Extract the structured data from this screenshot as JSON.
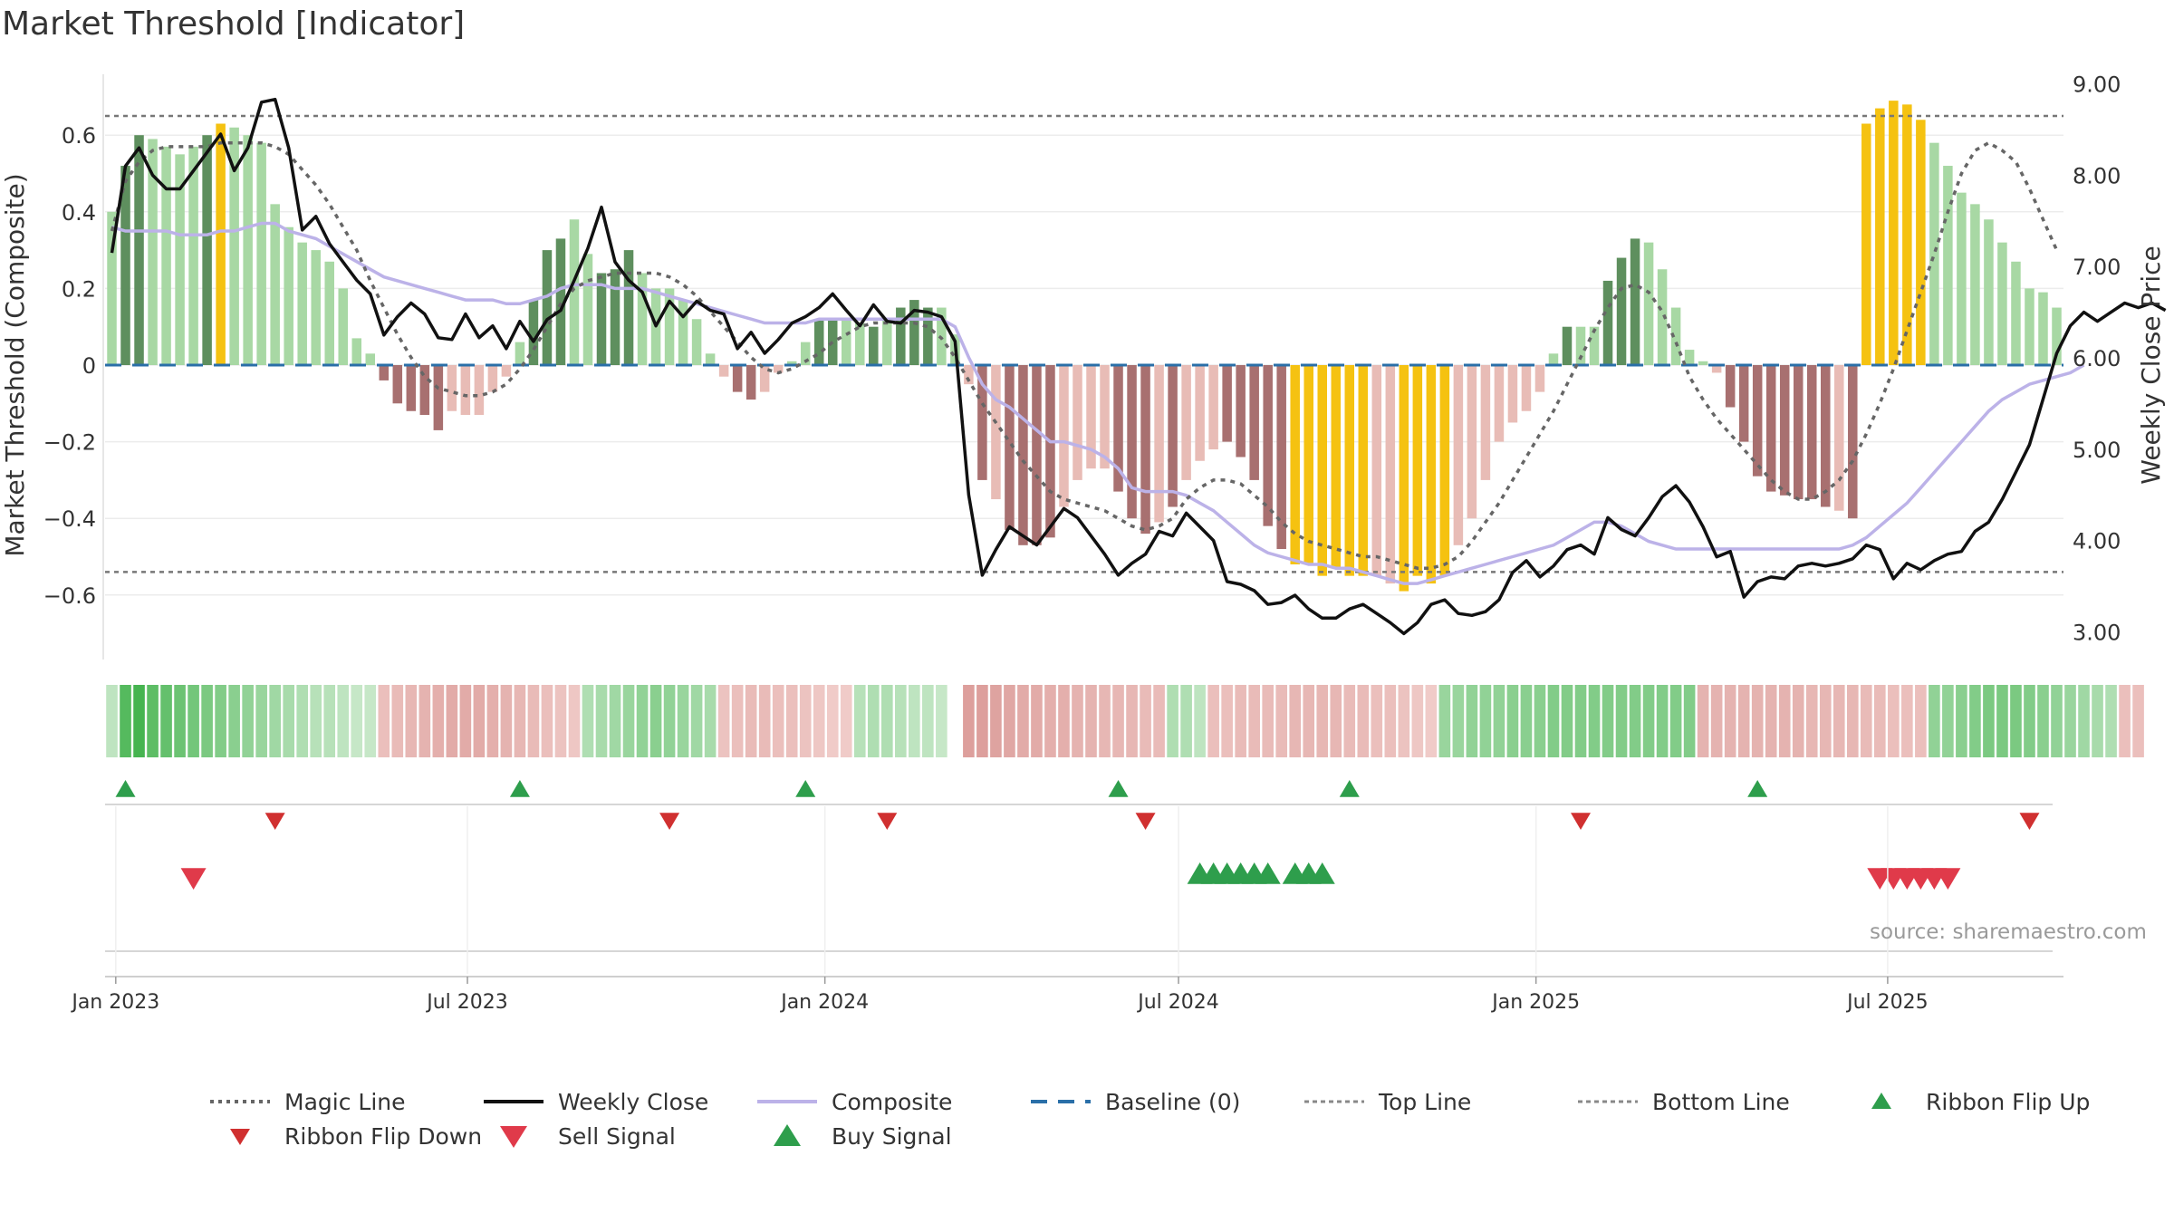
{
  "title": "Market Threshold [Indicator]",
  "source": "source: sharemaestro.com",
  "colors": {
    "magic_line": "#666666",
    "weekly_close": "#111111",
    "composite": "#bcb2e8",
    "baseline": "#2a6fa8",
    "threshold_lines": "#777777",
    "bar_dark_green": "#5e8f5e",
    "bar_light_green": "#a8d8a4",
    "bar_dark_red": "#a87070",
    "bar_light_red": "#e8bcb6",
    "bar_yellow": "#f5c211",
    "buy_signal": "#2e9e4c",
    "sell_signal": "#e03a4a",
    "ribbon_flip_up": "#2e9e4c",
    "ribbon_flip_down": "#d03030"
  },
  "legend": [
    {
      "label": "Magic Line",
      "symbol": "dotted-line"
    },
    {
      "label": "Weekly Close",
      "symbol": "solid-line"
    },
    {
      "label": "Composite",
      "symbol": "solid-line-light"
    },
    {
      "label": "Baseline (0)",
      "symbol": "dashed-line"
    },
    {
      "label": "Top Line",
      "symbol": "dotted-line-light"
    },
    {
      "label": "Bottom Line",
      "symbol": "dotted-line-light"
    },
    {
      "label": "Ribbon Flip Up",
      "symbol": "triangle-up"
    },
    {
      "label": "Ribbon Flip Down",
      "symbol": "triangle-down"
    },
    {
      "label": "Sell Signal",
      "symbol": "triangle-down"
    },
    {
      "label": "Buy Signal",
      "symbol": "triangle-up"
    }
  ],
  "chart_data": {
    "type": "bar",
    "title": "Market Threshold [Indicator]",
    "ylabel": "Market Threshold (Composite)",
    "y2label": "Weekly Close Price",
    "ylim": [
      -0.76,
      0.76
    ],
    "y2lim": [
      2.75,
      9.2
    ],
    "yticks": [
      "0.6",
      "0.4",
      "0.2",
      "0",
      "−0.2",
      "−0.4",
      "−0.6"
    ],
    "y2ticks": [
      "9.00",
      "8.00",
      "7.00",
      "6.00",
      "5.00",
      "4.00",
      "3.00"
    ],
    "xticks": [
      "Jan 2023",
      "Jul 2023",
      "Jan 2024",
      "Jul 2024",
      "Jan 2025",
      "Jul 2025"
    ],
    "x_start": "2022-12-30",
    "weeks": 144,
    "top_line": 0.65,
    "bottom_line": -0.54,
    "baseline": 0,
    "grid": true,
    "legend_position": "bottom",
    "composite_bars": [
      {
        "from": 0,
        "to": 1,
        "values": [
          0.4,
          0.52
        ],
        "colors": [
          "lg",
          "dg"
        ]
      },
      {
        "from": 2,
        "to": 7,
        "values": [
          0.6,
          0.59,
          0.57,
          0.55,
          0.57,
          0.6
        ],
        "colors": [
          "dg",
          "lg",
          "lg",
          "lg",
          "lg",
          "dg"
        ]
      },
      {
        "from": 8,
        "to": 8,
        "values": [
          0.63
        ],
        "colors": [
          "y"
        ]
      },
      {
        "from": 9,
        "to": 17,
        "values": [
          0.62,
          0.6,
          0.58,
          0.42,
          0.36,
          0.32,
          0.3,
          0.27,
          0.2
        ],
        "colors": [
          "lg",
          "lg",
          "lg",
          "lg",
          "lg",
          "lg",
          "lg",
          "lg",
          "lg"
        ]
      },
      {
        "from": 18,
        "to": 19,
        "values": [
          0.07,
          0.03
        ],
        "colors": [
          "lg",
          "lg"
        ]
      },
      {
        "from": 20,
        "to": 28,
        "values": [
          -0.04,
          -0.1,
          -0.12,
          -0.13,
          -0.17,
          -0.12,
          -0.13,
          -0.13,
          -0.07
        ],
        "colors": [
          "dr",
          "dr",
          "dr",
          "dr",
          "dr",
          "lr",
          "lr",
          "lr",
          "lr"
        ]
      },
      {
        "from": 29,
        "to": 38,
        "values": [
          -0.03,
          0.06,
          0.17,
          0.3,
          0.33,
          0.38,
          0.29,
          0.24,
          0.25,
          0.3
        ],
        "colors": [
          "lr",
          "lg",
          "dg",
          "dg",
          "dg",
          "lg",
          "lg",
          "dg",
          "dg",
          "dg"
        ]
      },
      {
        "from": 39,
        "to": 43,
        "values": [
          0.24,
          0.2,
          0.2,
          0.17,
          0.12
        ],
        "colors": [
          "lg",
          "lg",
          "lg",
          "lg",
          "lg"
        ]
      },
      {
        "from": 44,
        "to": 50,
        "values": [
          0.03,
          -0.03,
          -0.07,
          -0.09,
          -0.07,
          -0.02,
          0.01
        ],
        "colors": [
          "lg",
          "lr",
          "dr",
          "dr",
          "lr",
          "lr",
          "lg"
        ]
      },
      {
        "from": 51,
        "to": 56,
        "values": [
          0.06,
          0.12,
          0.12,
          0.12,
          0.11,
          0.1
        ],
        "colors": [
          "lg",
          "dg",
          "dg",
          "lg",
          "lg",
          "dg"
        ]
      },
      {
        "from": 57,
        "to": 62,
        "values": [
          0.12,
          0.15,
          0.17,
          0.15,
          0.15,
          0.08
        ],
        "colors": [
          "lg",
          "dg",
          "dg",
          "dg",
          "lg",
          "lg"
        ]
      },
      {
        "from": 63,
        "to": 68,
        "values": [
          -0.05,
          -0.3,
          -0.35,
          -0.43,
          -0.47,
          -0.47
        ],
        "colors": [
          "lr",
          "dr",
          "lr",
          "dr",
          "dr",
          "dr"
        ]
      },
      {
        "from": 69,
        "to": 75,
        "values": [
          -0.45,
          -0.37,
          -0.3,
          -0.27,
          -0.27,
          -0.33,
          -0.4
        ],
        "colors": [
          "dr",
          "lr",
          "lr",
          "lr",
          "lr",
          "dr",
          "dr"
        ]
      },
      {
        "from": 76,
        "to": 84,
        "values": [
          -0.44,
          -0.41,
          -0.37,
          -0.3,
          -0.25,
          -0.22,
          -0.2,
          -0.24,
          -0.3
        ],
        "colors": [
          "dr",
          "lr",
          "dr",
          "lr",
          "lr",
          "lr",
          "dr",
          "dr",
          "dr"
        ]
      },
      {
        "from": 85,
        "to": 89,
        "values": [
          -0.42,
          -0.48,
          -0.52,
          -0.52,
          -0.55
        ],
        "colors": [
          "dr",
          "dr",
          "y",
          "y",
          "y"
        ]
      },
      {
        "from": 90,
        "to": 96,
        "values": [
          -0.53,
          -0.55,
          -0.55,
          -0.55,
          -0.57,
          -0.59,
          -0.55
        ],
        "colors": [
          "y",
          "y",
          "y",
          "lr",
          "lr",
          "y",
          "y"
        ]
      },
      {
        "from": 97,
        "to": 98,
        "values": [
          -0.57,
          -0.55
        ],
        "colors": [
          "y",
          "y"
        ]
      },
      {
        "from": 99,
        "to": 105,
        "values": [
          -0.47,
          -0.4,
          -0.3,
          -0.2,
          -0.15,
          -0.12,
          -0.07
        ],
        "colors": [
          "lr",
          "lr",
          "lr",
          "lr",
          "lr",
          "lr",
          "lr"
        ]
      },
      {
        "from": 106,
        "to": 114,
        "values": [
          0.03,
          0.1,
          0.1,
          0.1,
          0.22,
          0.28,
          0.33,
          0.32,
          0.25
        ],
        "colors": [
          "lg",
          "dg",
          "lg",
          "lg",
          "dg",
          "dg",
          "dg",
          "lg",
          "lg"
        ]
      },
      {
        "from": 115,
        "to": 117,
        "values": [
          0.15,
          0.04,
          0.01
        ],
        "colors": [
          "lg",
          "lg",
          "lg"
        ]
      },
      {
        "from": 118,
        "to": 126,
        "values": [
          -0.02,
          -0.11,
          -0.2,
          -0.29,
          -0.33,
          -0.34,
          -0.35,
          -0.35,
          -0.37
        ],
        "colors": [
          "lr",
          "dr",
          "dr",
          "dr",
          "dr",
          "dr",
          "dr",
          "dr",
          "dr"
        ]
      },
      {
        "from": 127,
        "to": 133,
        "values": [
          -0.38,
          -0.4,
          -0.4,
          -0.41,
          -0.38,
          -0.33,
          -0.32
        ],
        "colors": [
          "lr",
          "dr",
          "lr",
          "dr",
          "lr",
          "lr",
          "lr"
        ]
      },
      {
        "from": 134,
        "to": 136,
        "values": [
          -0.22,
          -0.1,
          0.01
        ],
        "colors": [
          "lr",
          "lr",
          "lg"
        ]
      },
      {
        "from": 137,
        "to": 143,
        "values": [
          0.08,
          0.23,
          0.33,
          0.42,
          0.54,
          0.53,
          0.54
        ],
        "colors": [
          "dg",
          "dg",
          "dg",
          "dg",
          "dg",
          "lg",
          "dg"
        ]
      }
    ],
    "composite_bars_tail": {
      "values": [
        0.63,
        0.67,
        0.69,
        0.68,
        0.64,
        0.58,
        0.52,
        0.45,
        0.42,
        0.38,
        0.32,
        0.27,
        0.2,
        0.19,
        0.15
      ],
      "colors": [
        "y",
        "y",
        "y",
        "y",
        "y",
        "lg",
        "lg",
        "lg",
        "lg",
        "lg",
        "lg",
        "lg",
        "lg",
        "lg",
        "lg"
      ]
    },
    "weekly_close": [
      7.15,
      8.1,
      8.3,
      8.0,
      7.85,
      7.85,
      8.05,
      8.25,
      8.45,
      8.05,
      8.3,
      8.8,
      8.83,
      8.3,
      7.4,
      7.55,
      7.25,
      7.05,
      6.85,
      6.7,
      6.25,
      6.45,
      6.6,
      6.48,
      6.22,
      6.2,
      6.48,
      6.22,
      6.35,
      6.1,
      6.4,
      6.18,
      6.42,
      6.52,
      6.85,
      7.2,
      7.65,
      7.05,
      6.85,
      6.72,
      6.35,
      6.62,
      6.45,
      6.62,
      6.52,
      6.48,
      6.1,
      6.28,
      6.05,
      6.2,
      6.38,
      6.45,
      6.55,
      6.7,
      6.52,
      6.35,
      6.58,
      6.4,
      6.38,
      6.52,
      6.5,
      6.45,
      6.18,
      4.5,
      3.62,
      3.9,
      4.15,
      4.05,
      3.95,
      4.15,
      4.35,
      4.25,
      4.05,
      3.85,
      3.62,
      3.75,
      3.85,
      4.1,
      4.05,
      4.3,
      4.15,
      4.0,
      3.55,
      3.52,
      3.45,
      3.3,
      3.32,
      3.4,
      3.25,
      3.15,
      3.15,
      3.25,
      3.3,
      3.2,
      3.1,
      2.98,
      3.1,
      3.3,
      3.35,
      3.2,
      3.18,
      3.22,
      3.35,
      3.65,
      3.78,
      3.6,
      3.72,
      3.9,
      3.95,
      3.85,
      4.25,
      4.12,
      4.05,
      4.25,
      4.48,
      4.6,
      4.42,
      4.15,
      3.82,
      3.88,
      3.38,
      3.55,
      3.6,
      3.58,
      3.72,
      3.75,
      3.72,
      3.75,
      3.8,
      3.95,
      3.9,
      3.58,
      3.75,
      3.68,
      3.78,
      3.85,
      3.88,
      4.1,
      4.2,
      4.45,
      4.75,
      5.05,
      5.55,
      6.05,
      6.35,
      6.5,
      6.4,
      6.5,
      6.6,
      6.55,
      6.6,
      6.52
    ],
    "composite_line": [
      0.36,
      0.35,
      0.35,
      0.35,
      0.35,
      0.34,
      0.34,
      0.34,
      0.35,
      0.35,
      0.36,
      0.37,
      0.37,
      0.35,
      0.34,
      0.33,
      0.31,
      0.29,
      0.27,
      0.25,
      0.23,
      0.22,
      0.21,
      0.2,
      0.19,
      0.18,
      0.17,
      0.17,
      0.17,
      0.16,
      0.16,
      0.17,
      0.18,
      0.2,
      0.21,
      0.21,
      0.21,
      0.2,
      0.2,
      0.2,
      0.19,
      0.18,
      0.17,
      0.16,
      0.15,
      0.14,
      0.13,
      0.12,
      0.11,
      0.11,
      0.11,
      0.11,
      0.12,
      0.12,
      0.12,
      0.12,
      0.12,
      0.12,
      0.12,
      0.12,
      0.12,
      0.12,
      0.1,
      0.02,
      -0.05,
      -0.09,
      -0.11,
      -0.14,
      -0.17,
      -0.2,
      -0.2,
      -0.21,
      -0.22,
      -0.24,
      -0.27,
      -0.32,
      -0.33,
      -0.33,
      -0.33,
      -0.34,
      -0.36,
      -0.38,
      -0.41,
      -0.44,
      -0.47,
      -0.49,
      -0.5,
      -0.51,
      -0.52,
      -0.52,
      -0.53,
      -0.53,
      -0.54,
      -0.55,
      -0.56,
      -0.57,
      -0.57,
      -0.56,
      -0.55,
      -0.54,
      -0.53,
      -0.52,
      -0.51,
      -0.5,
      -0.49,
      -0.48,
      -0.47,
      -0.45,
      -0.43,
      -0.41,
      -0.41,
      -0.42,
      -0.44,
      -0.46,
      -0.47,
      -0.48,
      -0.48,
      -0.48,
      -0.48,
      -0.48,
      -0.48,
      -0.48,
      -0.48,
      -0.48,
      -0.48,
      -0.48,
      -0.48,
      -0.48,
      -0.47,
      -0.45,
      -0.42,
      -0.39,
      -0.36,
      -0.32,
      -0.28,
      -0.24,
      -0.2,
      -0.16,
      -0.12,
      -0.09,
      -0.07,
      -0.05,
      -0.04,
      -0.03,
      -0.02,
      0.0
    ],
    "magic_line": [
      0.35,
      0.48,
      0.53,
      0.56,
      0.57,
      0.57,
      0.57,
      0.57,
      0.58,
      0.58,
      0.58,
      0.58,
      0.57,
      0.55,
      0.51,
      0.47,
      0.42,
      0.36,
      0.3,
      0.22,
      0.15,
      0.08,
      0.02,
      -0.03,
      -0.06,
      -0.07,
      -0.08,
      -0.08,
      -0.07,
      -0.05,
      -0.01,
      0.04,
      0.1,
      0.16,
      0.2,
      0.22,
      0.23,
      0.24,
      0.24,
      0.24,
      0.24,
      0.23,
      0.21,
      0.18,
      0.14,
      0.1,
      0.06,
      0.02,
      -0.01,
      -0.02,
      -0.01,
      0.01,
      0.03,
      0.06,
      0.08,
      0.1,
      0.11,
      0.11,
      0.11,
      0.11,
      0.1,
      0.07,
      0.02,
      -0.04,
      -0.1,
      -0.15,
      -0.2,
      -0.25,
      -0.29,
      -0.33,
      -0.35,
      -0.36,
      -0.37,
      -0.38,
      -0.4,
      -0.42,
      -0.43,
      -0.42,
      -0.4,
      -0.35,
      -0.32,
      -0.3,
      -0.3,
      -0.31,
      -0.34,
      -0.37,
      -0.41,
      -0.44,
      -0.46,
      -0.47,
      -0.48,
      -0.49,
      -0.5,
      -0.5,
      -0.51,
      -0.52,
      -0.53,
      -0.53,
      -0.52,
      -0.5,
      -0.46,
      -0.41,
      -0.36,
      -0.3,
      -0.24,
      -0.18,
      -0.12,
      -0.05,
      0.02,
      0.09,
      0.15,
      0.2,
      0.21,
      0.19,
      0.14,
      0.06,
      -0.03,
      -0.09,
      -0.14,
      -0.18,
      -0.22,
      -0.26,
      -0.3,
      -0.33,
      -0.35,
      -0.35,
      -0.33,
      -0.3,
      -0.25,
      -0.18,
      -0.1,
      -0.01,
      0.09,
      0.19,
      0.29,
      0.4,
      0.5,
      0.56,
      0.58,
      0.56,
      0.53,
      0.46,
      0.38,
      0.3
    ],
    "ribbon_strength": [
      0.2,
      0.9,
      1.0,
      0.85,
      0.8,
      0.75,
      0.7,
      0.65,
      0.6,
      0.55,
      0.5,
      0.45,
      0.4,
      0.35,
      0.3,
      0.25,
      0.25,
      0.2,
      0.15,
      0.15,
      -0.3,
      -0.35,
      -0.4,
      -0.45,
      -0.5,
      -0.55,
      -0.55,
      -0.55,
      -0.5,
      -0.45,
      -0.4,
      -0.35,
      -0.3,
      -0.25,
      -0.2,
      0.3,
      0.35,
      0.4,
      0.45,
      0.5,
      0.55,
      0.5,
      0.45,
      0.4,
      0.35,
      -0.25,
      -0.3,
      -0.35,
      -0.35,
      -0.3,
      -0.3,
      -0.25,
      -0.2,
      -0.15,
      -0.15,
      0.25,
      0.3,
      0.3,
      0.25,
      0.2,
      0.2,
      0.15,
      0.0,
      -0.7,
      -0.7,
      -0.65,
      -0.6,
      -0.55,
      -0.55,
      -0.5,
      -0.5,
      -0.45,
      -0.45,
      -0.4,
      -0.4,
      -0.4,
      -0.35,
      -0.35,
      0.3,
      0.3,
      0.2,
      -0.3,
      -0.3,
      -0.35,
      -0.35,
      -0.35,
      -0.35,
      -0.4,
      -0.4,
      -0.4,
      -0.4,
      -0.35,
      -0.35,
      -0.3,
      -0.3,
      -0.25,
      -0.2,
      -0.15,
      0.45,
      0.45,
      0.5,
      0.5,
      0.5,
      0.55,
      0.55,
      0.55,
      0.6,
      0.6,
      0.6,
      0.6,
      0.6,
      0.6,
      0.6,
      0.6,
      0.6,
      0.6,
      0.6,
      -0.45,
      -0.45,
      -0.45,
      -0.45,
      -0.45,
      -0.45,
      -0.45,
      -0.45,
      -0.4,
      -0.4,
      -0.4,
      -0.4,
      -0.35,
      -0.35,
      -0.3,
      -0.3,
      -0.3,
      0.5,
      0.5,
      0.55,
      0.6,
      0.65,
      0.65,
      0.65,
      0.6,
      0.55,
      0.5,
      0.45,
      0.4,
      0.35,
      0.3,
      -0.3,
      -0.3
    ],
    "ribbon_flip_up": [
      1,
      30,
      51,
      74,
      91,
      121
    ],
    "ribbon_flip_down": [
      12,
      41,
      57,
      76,
      108,
      141
    ],
    "buy_signal": [
      80,
      81,
      82,
      83,
      84,
      85,
      87,
      88,
      89
    ],
    "sell_signal": [
      6,
      130,
      131,
      132,
      133,
      134,
      135
    ]
  }
}
